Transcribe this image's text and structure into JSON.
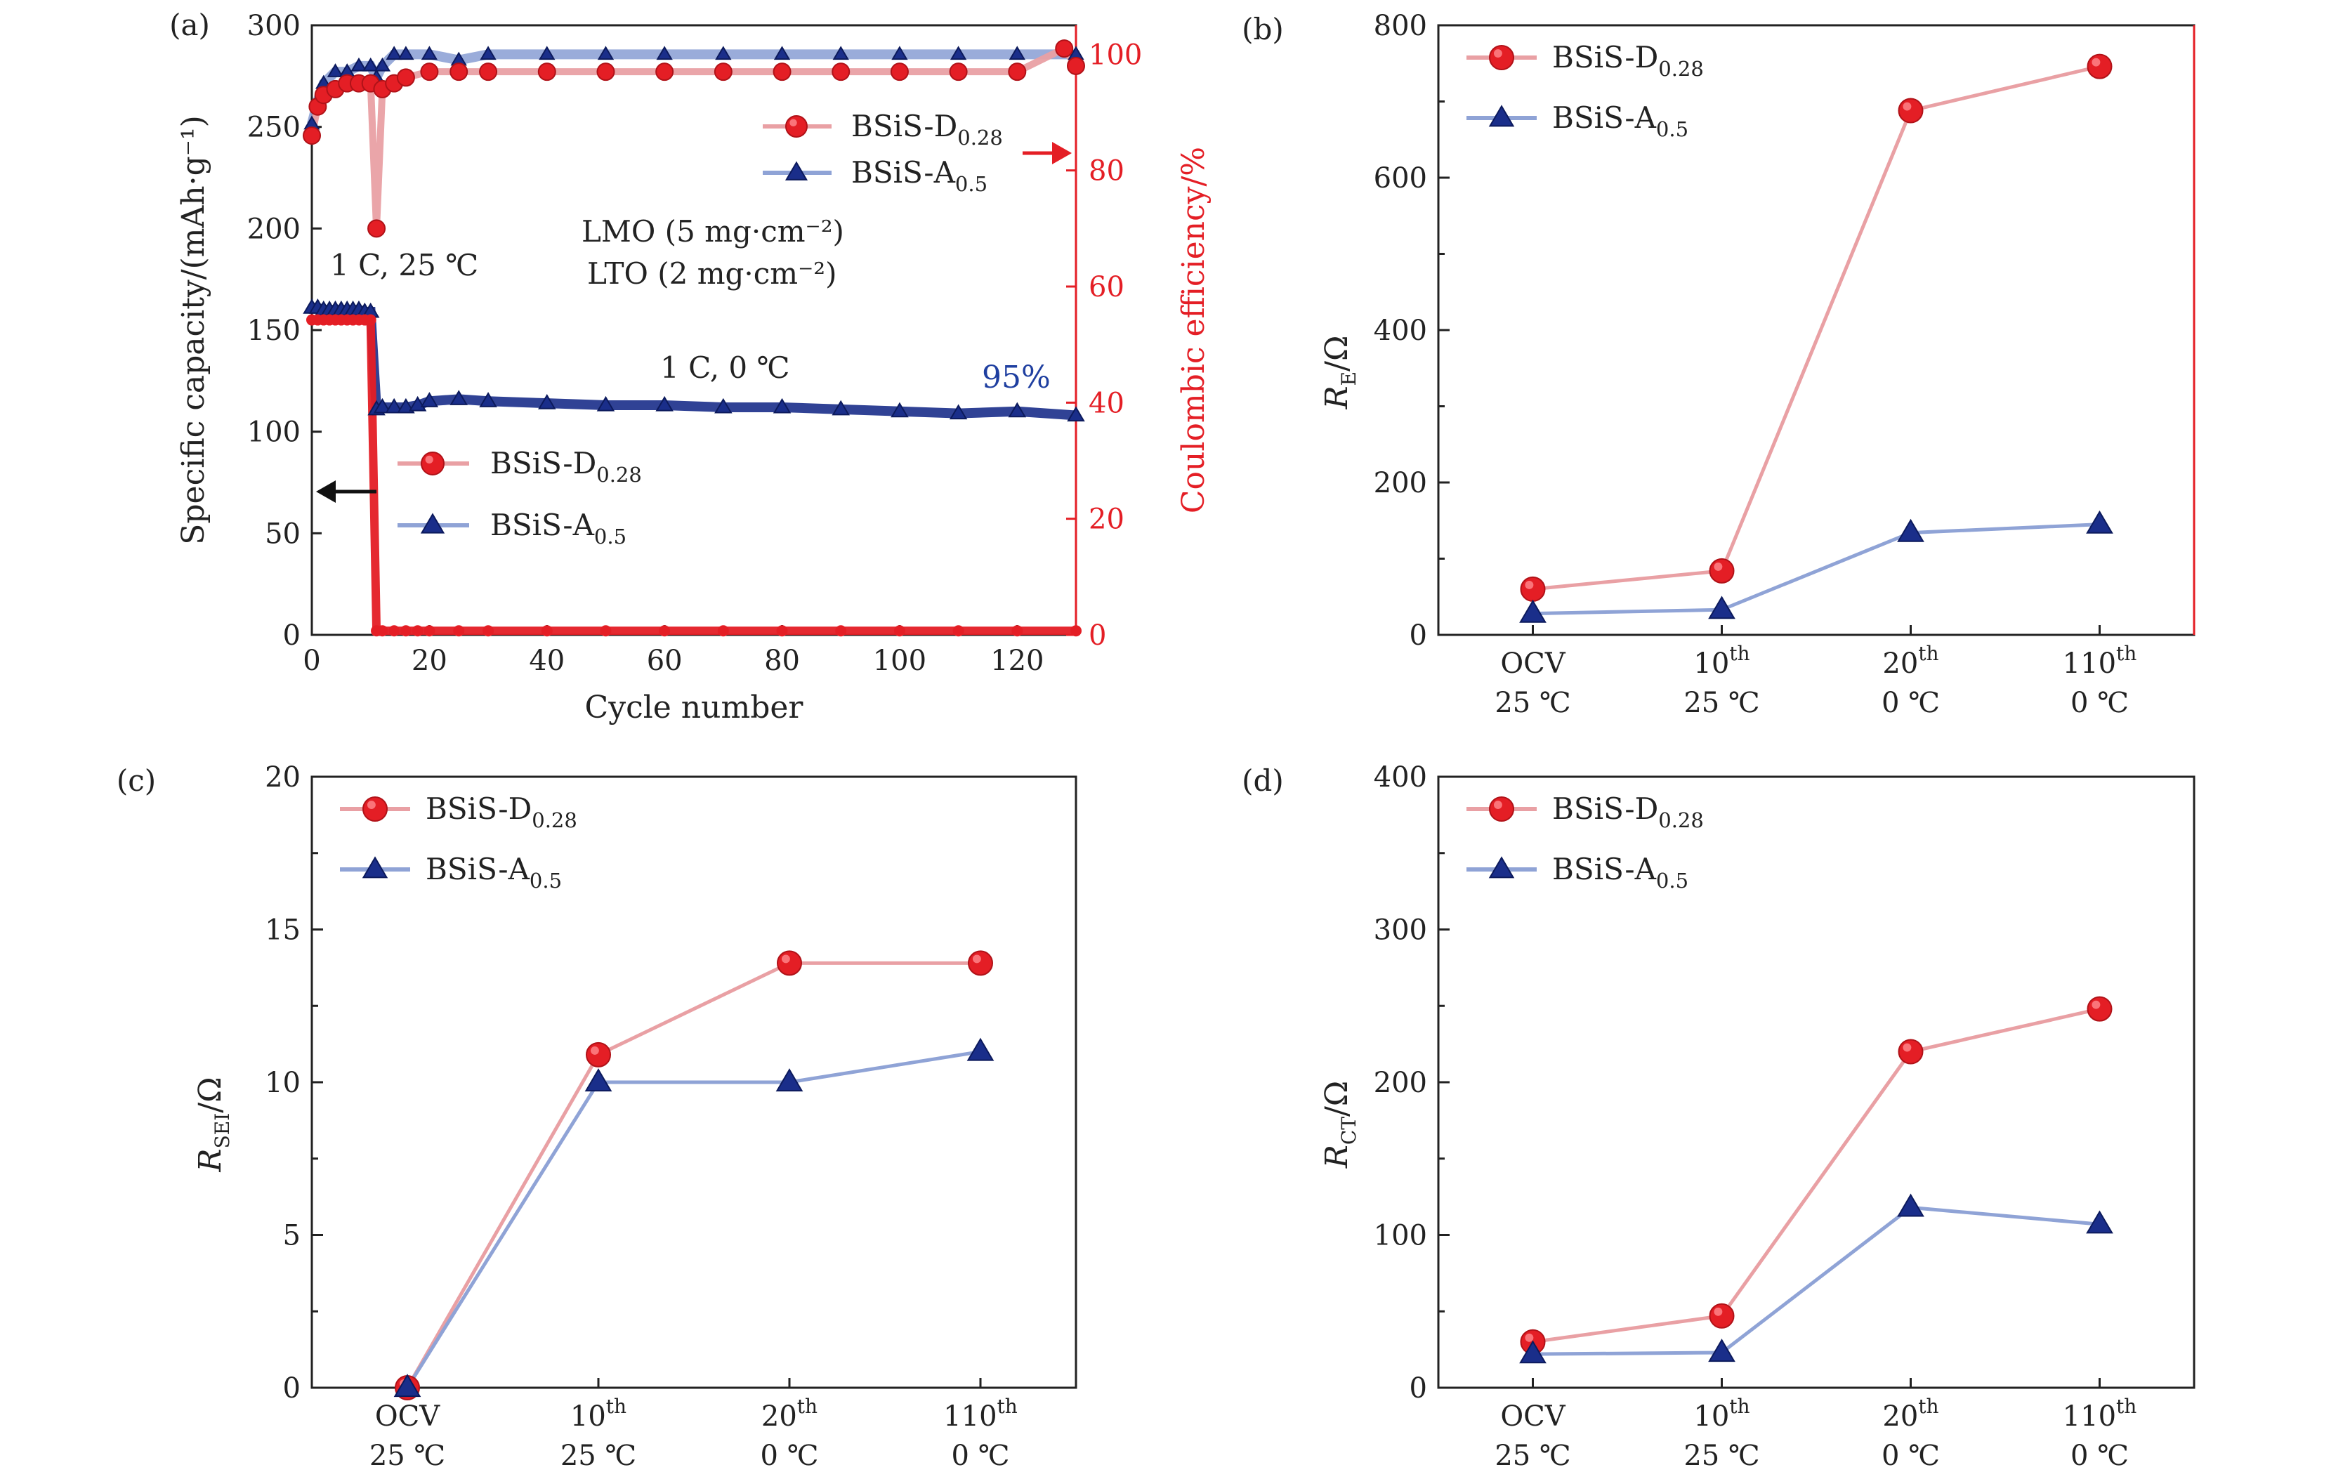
{
  "colors": {
    "red": "#e41e25",
    "red_line": "#e9a0a4",
    "blue": "#1a2e8a",
    "blue_line": "#8fa3d6",
    "axis": "#222222",
    "right_axis": "#e41e25",
    "annotation_blue": "#1f3fa0"
  },
  "chart_data": [
    {
      "id": "a",
      "panel_label": "(a)",
      "type": "scatter",
      "xlabel": "Cycle number",
      "ylabel": "Specific capacity/(mAh·g⁻¹)",
      "y2label": "Coulombic efficiency/%",
      "xlim": [
        0,
        130
      ],
      "ylim": [
        0,
        300
      ],
      "y2lim": [
        0,
        105
      ],
      "xticks": [
        0,
        20,
        40,
        60,
        80,
        100,
        120
      ],
      "yticks": [
        0,
        50,
        100,
        150,
        200,
        250,
        300
      ],
      "y2ticks": [
        0,
        20,
        40,
        60,
        80,
        100
      ],
      "annotations": {
        "rt": "1 C, 25 ℃",
        "low": "1 C, 0 ℃",
        "lmo": "LMO (5 mg·cm⁻²)",
        "lto": "LTO (2 mg·cm⁻²)",
        "retention": "95%"
      },
      "legend_ce": [
        {
          "series": "BSiS-D",
          "sub": "0.28"
        },
        {
          "series": "BSiS-A",
          "sub": "0.5"
        }
      ],
      "legend_cap": [
        {
          "series": "BSiS-D",
          "sub": "0.28"
        },
        {
          "series": "BSiS-A",
          "sub": "0.5"
        }
      ],
      "series": [
        {
          "name": "BSiS-D0.28 capacity",
          "marker": "circle",
          "axis": "left",
          "x": [
            0,
            1,
            2,
            3,
            4,
            5,
            6,
            7,
            8,
            9,
            10,
            11,
            12,
            14,
            16,
            18,
            20,
            25,
            30,
            40,
            50,
            60,
            70,
            80,
            90,
            100,
            110,
            120,
            130
          ],
          "y": [
            155,
            155,
            155,
            155,
            155,
            155,
            155,
            155,
            155,
            155,
            155,
            2,
            2,
            2,
            2,
            2,
            2,
            2,
            2,
            2,
            2,
            2,
            2,
            2,
            2,
            2,
            2,
            2,
            2
          ]
        },
        {
          "name": "BSiS-A0.5 capacity",
          "marker": "triangle",
          "axis": "left",
          "x": [
            0,
            1,
            2,
            3,
            4,
            5,
            6,
            7,
            8,
            9,
            10,
            11,
            12,
            14,
            16,
            18,
            20,
            25,
            30,
            40,
            50,
            60,
            70,
            80,
            90,
            100,
            110,
            120,
            130
          ],
          "y": [
            161,
            161,
            160,
            160,
            160,
            160,
            160,
            160,
            160,
            159,
            159,
            111,
            112,
            112,
            112,
            113,
            115,
            116,
            115,
            114,
            113,
            113,
            112,
            112,
            111,
            110,
            109,
            110,
            108
          ]
        },
        {
          "name": "BSiS-D0.28 CE",
          "marker": "circle",
          "axis": "right",
          "x": [
            0,
            1,
            2,
            4,
            6,
            8,
            10,
            11,
            12,
            14,
            16,
            20,
            25,
            30,
            40,
            50,
            60,
            70,
            80,
            90,
            100,
            110,
            120,
            128,
            130
          ],
          "y": [
            86,
            91,
            93,
            94,
            95,
            95,
            95,
            70,
            94,
            95,
            96,
            97,
            97,
            97,
            97,
            97,
            97,
            97,
            97,
            97,
            97,
            97,
            97,
            101,
            98
          ]
        },
        {
          "name": "BSiS-A0.5 CE",
          "marker": "triangle",
          "axis": "right",
          "x": [
            0,
            1,
            2,
            4,
            6,
            8,
            10,
            11,
            12,
            14,
            16,
            20,
            25,
            30,
            40,
            50,
            60,
            70,
            80,
            90,
            100,
            110,
            120,
            130
          ],
          "y": [
            88,
            92,
            95,
            97,
            97,
            98,
            98,
            96,
            98,
            100,
            100,
            100,
            99,
            100,
            100,
            100,
            100,
            100,
            100,
            100,
            100,
            100,
            100,
            100
          ]
        }
      ]
    },
    {
      "id": "b",
      "panel_label": "(b)",
      "type": "line",
      "ylabel_main": "R",
      "ylabel_sub": "E",
      "ylabel_unit": "/Ω",
      "ylim": [
        0,
        800
      ],
      "yticks": [
        0,
        200,
        400,
        600,
        800
      ],
      "categories": [
        {
          "main": "OCV",
          "sup": "",
          "temp": "25 ℃"
        },
        {
          "main": "10",
          "sup": "th",
          "temp": "25 ℃"
        },
        {
          "main": "20",
          "sup": "th",
          "temp": "0 ℃"
        },
        {
          "main": "110",
          "sup": "th",
          "temp": "0 ℃"
        }
      ],
      "series": [
        {
          "name": "BSiS-D",
          "sub": "0.28",
          "marker": "circle",
          "values": [
            60,
            84,
            688,
            746
          ]
        },
        {
          "name": "BSiS-A",
          "sub": "0.5",
          "marker": "triangle",
          "values": [
            28,
            33,
            134,
            145
          ]
        }
      ]
    },
    {
      "id": "c",
      "panel_label": "(c)",
      "type": "line",
      "ylabel_main": "R",
      "ylabel_sub": "SEI",
      "ylabel_unit": "/Ω",
      "ylim": [
        0,
        20
      ],
      "yticks": [
        0,
        5,
        10,
        15,
        20
      ],
      "categories": [
        {
          "main": "OCV",
          "sup": "",
          "temp": "25 ℃"
        },
        {
          "main": "10",
          "sup": "th",
          "temp": "25 ℃"
        },
        {
          "main": "20",
          "sup": "th",
          "temp": "0 ℃"
        },
        {
          "main": "110",
          "sup": "th",
          "temp": "0 ℃"
        }
      ],
      "series": [
        {
          "name": "BSiS-D",
          "sub": "0.28",
          "marker": "circle",
          "values": [
            0,
            10.9,
            13.9,
            13.9
          ]
        },
        {
          "name": "BSiS-A",
          "sub": "0.5",
          "marker": "triangle",
          "values": [
            0,
            10,
            10,
            11
          ]
        }
      ]
    },
    {
      "id": "d",
      "panel_label": "(d)",
      "type": "line",
      "ylabel_main": "R",
      "ylabel_sub": "CT",
      "ylabel_unit": "/Ω",
      "ylim": [
        0,
        400
      ],
      "yticks": [
        0,
        100,
        200,
        300,
        400
      ],
      "categories": [
        {
          "main": "OCV",
          "sup": "",
          "temp": "25 ℃"
        },
        {
          "main": "10",
          "sup": "th",
          "temp": "25 ℃"
        },
        {
          "main": "20",
          "sup": "th",
          "temp": "0 ℃"
        },
        {
          "main": "110",
          "sup": "th",
          "temp": "0 ℃"
        }
      ],
      "series": [
        {
          "name": "BSiS-D",
          "sub": "0.28",
          "marker": "circle",
          "values": [
            30,
            47,
            220,
            248
          ]
        },
        {
          "name": "BSiS-A",
          "sub": "0.5",
          "marker": "triangle",
          "values": [
            22,
            23,
            118,
            107
          ]
        }
      ]
    }
  ]
}
